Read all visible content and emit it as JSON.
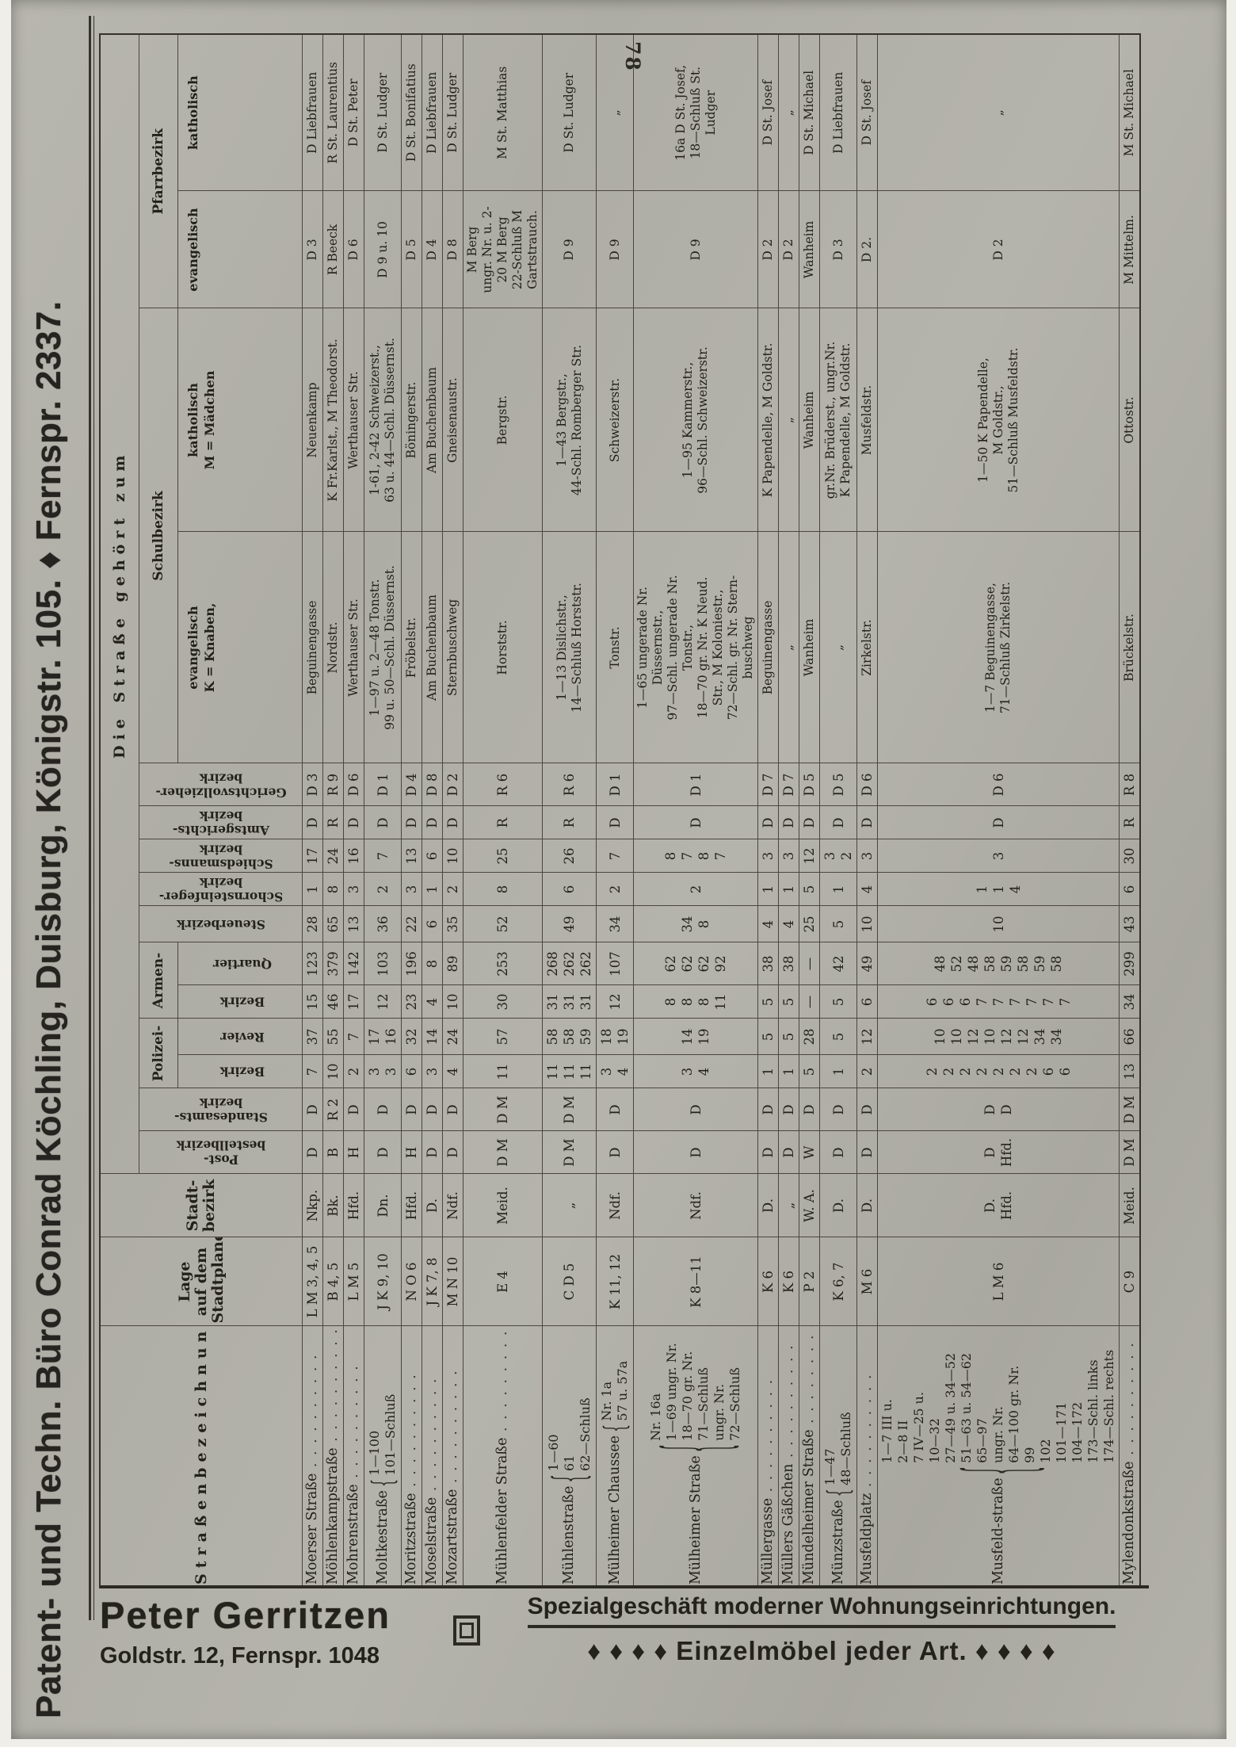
{
  "page": {
    "number": "78"
  },
  "banner_top": {
    "text": "Patent- und Techn. Büro Conrad Köchling, Duisburg, Königstr. 105. ♦ Fernspr. 2337."
  },
  "ad_bottom": {
    "name": "Peter Gerritzen",
    "address": "Goldstr. 12, Fernspr. 1048",
    "logo": "square-logo-icon",
    "line1": "Spezialgeschäft moderner Wohnungseinrichtungen.",
    "line2": "♦ ♦ ♦ ♦  Einzelmöbel jeder Art.  ♦ ♦ ♦ ♦"
  },
  "table": {
    "headers": {
      "strasse": "Straßenbezeichnung",
      "lage": "Lage\nauf dem\nStadtplane",
      "stadt": "Stadt-\nbezirk",
      "gehoert": "Die Straße gehört zum",
      "post": "Post-\nbestellbezirk",
      "standesamt": "Standesamts-\nbezirk",
      "polizei": "Polizei-",
      "armen": "Armen-",
      "bezirk": "Bezirk",
      "revier": "Revier",
      "quartier": "Quartier",
      "steuer": "Steuerbezirk",
      "schornstein": "Schornsteinfeger-\nbezirk",
      "schieds": "Schiedsmanns-\nbezirk",
      "amtsgericht": "Amtsgerichts-\nbezirk",
      "gerichtsvollzieher": "Gerichtsvollzieher-\nbezirk",
      "schule": "Schulbezirk",
      "schule_ev": "evangelisch",
      "schule_ev_note": "K = Knaben,",
      "schule_kath": "katholisch",
      "schule_kath_note": "M = Mädchen",
      "pfarr": "Pfarrbezirk",
      "pfarr_ev": "evangelisch",
      "pfarr_kath": "katholisch"
    },
    "rows": [
      {
        "name": "Moerser Straße",
        "numbering": "",
        "lage": "L M 3, 4, 5",
        "stadt": "Nkp.",
        "post": "D",
        "stand": "D",
        "pol_b": "7",
        "pol_r": "37",
        "arm_b": "15",
        "arm_q": "123",
        "steuer": "28",
        "schornst": "1",
        "schieds": "17",
        "amtsger": "D",
        "gv": "D 3",
        "schule_ev": "Beguinengasse",
        "schule_kath": "Neuenkamp",
        "pfarr_ev": "D 3",
        "pfarr_kath": "D Liebfrauen"
      },
      {
        "name": "Möhlenkampstraße",
        "numbering": "",
        "lage": "B 4, 5",
        "stadt": "Bk.",
        "post": "B",
        "stand": "R 2",
        "pol_b": "10",
        "pol_r": "55",
        "arm_b": "46",
        "arm_q": "379",
        "steuer": "65",
        "schornst": "8",
        "schieds": "24",
        "amtsger": "R",
        "gv": "R 9",
        "schule_ev": "Nordstr.",
        "schule_kath": "K Fr.Karlst., M Theodorst.",
        "pfarr_ev": "R Beeck",
        "pfarr_kath": "R St. Laurentius"
      },
      {
        "name": "Mohrenstraße",
        "numbering": "",
        "lage": "L M 5",
        "stadt": "Hfd.",
        "post": "H",
        "stand": "D",
        "pol_b": "2",
        "pol_r": "7",
        "arm_b": "17",
        "arm_q": "142",
        "steuer": "13",
        "schornst": "3",
        "schieds": "16",
        "amtsger": "D",
        "gv": "D 6",
        "schule_ev": "Werthauser Str.",
        "schule_kath": "Werthauser Str.",
        "pfarr_ev": "D 6",
        "pfarr_kath": "D St. Peter"
      },
      {
        "name": "Moltkestraße",
        "numbering": "1—100\n101—Schluß",
        "lage": "J K 9, 10",
        "stadt": "Dn.",
        "post": "D",
        "stand": "D",
        "pol_b": "3\n3",
        "pol_r": "17\n16",
        "arm_b": "12",
        "arm_q": "103",
        "steuer": "36",
        "schornst": "2",
        "schieds": "7",
        "amtsger": "D",
        "gv": "D 1",
        "schule_ev": "1—97 u. 2—48 Tonstr.\n99 u. 50—Schl. Düssernst.",
        "schule_kath": "1-61, 2-42 Schweizerst.,\n63 u. 44—Schl. Düssernst.",
        "pfarr_ev": "D 9 u. 10",
        "pfarr_kath": "D St. Ludger"
      },
      {
        "name": "Moritzstraße",
        "numbering": "",
        "lage": "N O 6",
        "stadt": "Hfd.",
        "post": "H",
        "stand": "D",
        "pol_b": "6",
        "pol_r": "32",
        "arm_b": "23",
        "arm_q": "196",
        "steuer": "22",
        "schornst": "3",
        "schieds": "13",
        "amtsger": "D",
        "gv": "D 4",
        "schule_ev": "Fröbelstr.",
        "schule_kath": "Böningerstr.",
        "pfarr_ev": "D 5",
        "pfarr_kath": "D St. Bonifatius"
      },
      {
        "name": "Moselstraße",
        "numbering": "",
        "lage": "J K 7, 8",
        "stadt": "D.",
        "post": "D",
        "stand": "D",
        "pol_b": "3",
        "pol_r": "14",
        "arm_b": "4",
        "arm_q": "8",
        "steuer": "6",
        "schornst": "1",
        "schieds": "6",
        "amtsger": "D",
        "gv": "D 8",
        "schule_ev": "Am Buchenbaum",
        "schule_kath": "Am Buchenbaum",
        "pfarr_ev": "D 4",
        "pfarr_kath": "D Liebfrauen"
      },
      {
        "name": "Mozartstraße",
        "numbering": "",
        "lage": "M N 10",
        "stadt": "Ndf.",
        "post": "D",
        "stand": "D",
        "pol_b": "4",
        "pol_r": "24",
        "arm_b": "10",
        "arm_q": "89",
        "steuer": "35",
        "schornst": "2",
        "schieds": "10",
        "amtsger": "D",
        "gv": "D 2",
        "schule_ev": "Sternbuschweg",
        "schule_kath": "Gneisenaustr.",
        "pfarr_ev": "D 8",
        "pfarr_kath": "D St. Ludger"
      },
      {
        "name": "Mühlenfelder Straße",
        "numbering": "",
        "lage": "E 4",
        "stadt": "Meid.",
        "post": "D M",
        "stand": "D M",
        "pol_b": "11",
        "pol_r": "57",
        "arm_b": "30",
        "arm_q": "253",
        "steuer": "52",
        "schornst": "8",
        "schieds": "25",
        "amtsger": "R",
        "gv": "R 6",
        "schule_ev": "Horststr.",
        "schule_kath": "Bergstr.",
        "pfarr_ev": "M Berg\nungr. Nr. u. 2-\n20 M Berg\n22-Schluß M\nGartstrauch.",
        "pfarr_kath": "M St. Matthias"
      },
      {
        "name": "Mühlenstraße",
        "numbering": "1—60\n61\n62—Schluß",
        "lage": "C D 5",
        "stadt": "„",
        "post": "D M",
        "stand": "D M",
        "pol_b": "11\n11\n11",
        "pol_r": "58\n58\n59",
        "arm_b": "31\n31\n31",
        "arm_q": "268\n262\n262",
        "steuer": "49",
        "schornst": "6",
        "schieds": "26",
        "amtsger": "R",
        "gv": "R 6",
        "schule_ev": "1—13 Dislichstr.,\n14—Schluß Horststr.",
        "schule_kath": "1—43 Bergstr.,\n44-Schl. Romberger Str.",
        "pfarr_ev": "D 9",
        "pfarr_kath": "D St. Ludger"
      },
      {
        "name": "Mülheimer Chaussee",
        "numbering": "Nr. 1a\n57 u. 57a",
        "lage": "K 11, 12",
        "stadt": "Ndf.",
        "post": "D",
        "stand": "D",
        "pol_b": "3\n4",
        "pol_r": "18\n19",
        "arm_b": "12",
        "arm_q": "107",
        "steuer": "34",
        "schornst": "2",
        "schieds": "7",
        "amtsger": "D",
        "gv": "D 1",
        "schule_ev": "Tonstr.",
        "schule_kath": "Schweizerstr.",
        "pfarr_ev": "D 9",
        "pfarr_kath": "„"
      },
      {
        "name": "Mülheimer Straße",
        "numbering": "Nr. 16a\n1—69 ungr. Nr.\n18—70 gr. Nr.\n71—Schluß\nungr. Nr.\n72—Schluß",
        "lage": "K 8—11",
        "stadt": "Ndf.",
        "post": "D",
        "stand": "D",
        "pol_b": "3\n4",
        "pol_r": "14\n19",
        "arm_b": "8\n8\n8\n11",
        "arm_q": "62\n62\n62\n92",
        "steuer": "34\n8",
        "schornst": "2",
        "schieds": "8\n7\n8\n7",
        "amtsger": "D",
        "gv": "D 1",
        "schule_ev": "1—65 ungerade Nr.\nDüssernstr.,\n97—Schl. ungerade Nr.\nTonstr.,\n18—70 gr. Nr. K Neud.\nStr., M Koloniestr.,\n72—Schl. gr. Nr. Stern-\nbuschweg",
        "schule_kath": "1—95 Kammerstr.,\n96—Schl. Schweizerstr.",
        "pfarr_ev": "D 9",
        "pfarr_kath": "16a D St. Josef,\n18—Schluß St.\nLudger"
      },
      {
        "name": "Müllergasse",
        "numbering": "",
        "lage": "K 6",
        "stadt": "D.",
        "post": "D",
        "stand": "D",
        "pol_b": "1",
        "pol_r": "5",
        "arm_b": "5",
        "arm_q": "38",
        "steuer": "4",
        "schornst": "1",
        "schieds": "3",
        "amtsger": "D",
        "gv": "D 7",
        "schule_ev": "Beguinengasse",
        "schule_kath": "K Papendelle, M Goldstr.",
        "pfarr_ev": "D 2",
        "pfarr_kath": "D St. Josef"
      },
      {
        "name": "Müllers Gäßchen",
        "numbering": "",
        "lage": "K 6",
        "stadt": "„",
        "post": "D",
        "stand": "D",
        "pol_b": "1",
        "pol_r": "5",
        "arm_b": "5",
        "arm_q": "38",
        "steuer": "4",
        "schornst": "1",
        "schieds": "3",
        "amtsger": "D",
        "gv": "D 7",
        "schule_ev": "„",
        "schule_kath": "„",
        "pfarr_ev": "D 2",
        "pfarr_kath": "„"
      },
      {
        "name": "Mündelheimer Straße",
        "numbering": "",
        "lage": "P 2",
        "stadt": "W. A.",
        "post": "W",
        "stand": "D",
        "pol_b": "5",
        "pol_r": "28",
        "arm_b": "—",
        "arm_q": "—",
        "steuer": "25",
        "schornst": "5",
        "schieds": "12",
        "amtsger": "D",
        "gv": "D 5",
        "schule_ev": "Wanheim",
        "schule_kath": "Wanheim",
        "pfarr_ev": "Wanheim",
        "pfarr_kath": "D St. Michael"
      },
      {
        "name": "Münzstraße",
        "numbering": "1—47\n48—Schluß",
        "lage": "K 6, 7",
        "stadt": "D.",
        "post": "D",
        "stand": "D",
        "pol_b": "1",
        "pol_r": "5",
        "arm_b": "5",
        "arm_q": "42",
        "steuer": "5",
        "schornst": "1",
        "schieds": "3\n2",
        "amtsger": "D",
        "gv": "D 5",
        "schule_ev": "„",
        "schule_kath": "gr.Nr. Brüderst., ungr.Nr.\nK Papendelle, M Goldstr.",
        "pfarr_ev": "D 3",
        "pfarr_kath": "D Liebfrauen"
      },
      {
        "name": "Musfeldplatz",
        "numbering": "",
        "lage": "M 6",
        "stadt": "D.",
        "post": "D",
        "stand": "D",
        "pol_b": "2",
        "pol_r": "12",
        "arm_b": "6",
        "arm_q": "49",
        "steuer": "10",
        "schornst": "4",
        "schieds": "3",
        "amtsger": "D",
        "gv": "D 6",
        "schule_ev": "Zirkelstr.",
        "schule_kath": "Musfeldstr.",
        "pfarr_ev": "D 2.",
        "pfarr_kath": "D St. Josef"
      },
      {
        "name": "Musfeld-straße",
        "numbering": "1—7 III u.\n2—8 II\n7 IV—25 u.\n10—32\n27—49 u. 34—52\n51—63 u. 54—62\n65—97\nungr. Nr.\n64—100 gr. Nr.\n99\n102\n101—171\n104—172\n173—Schl. links\n174—Schl. rechts",
        "lage": "L M 6",
        "stadt": "D.\nHfd.",
        "post": "D\nHfd.",
        "stand": "D\nD",
        "pol_b": "2\n2\n2\n2\n2\n2\n2\n6\n6",
        "pol_r": "10\n10\n12\n10\n12\n12\n34\n34",
        "arm_b": "6\n6\n6\n7\n7\n7\n7\n7\n7",
        "arm_q": "48\n52\n48\n58\n59\n58\n59\n58",
        "steuer": "10",
        "schornst": "1\n1\n4",
        "schieds": "3",
        "amtsger": "D",
        "gv": "D 6",
        "schule_ev": "1—7 Beguinengasse,\n71—Schluß Zirkelstr.",
        "schule_kath": "1—50 K Papendelle,\nM Goldstr.,\n51—Schluß Musfeldstr.",
        "pfarr_ev": "D 2",
        "pfarr_kath": "„"
      },
      {
        "name": "Mylendonkstraße",
        "numbering": "",
        "lage": "C 9",
        "stadt": "Meid.",
        "post": "D M",
        "stand": "D M",
        "pol_b": "13",
        "pol_r": "66",
        "arm_b": "34",
        "arm_q": "299",
        "steuer": "43",
        "schornst": "6",
        "schieds": "30",
        "amtsger": "R",
        "gv": "R 8",
        "schule_ev": "Brückelstr.",
        "schule_kath": "Ottostr.",
        "pfarr_ev": "M Mittelm.",
        "pfarr_kath": "M St. Michael"
      }
    ]
  }
}
